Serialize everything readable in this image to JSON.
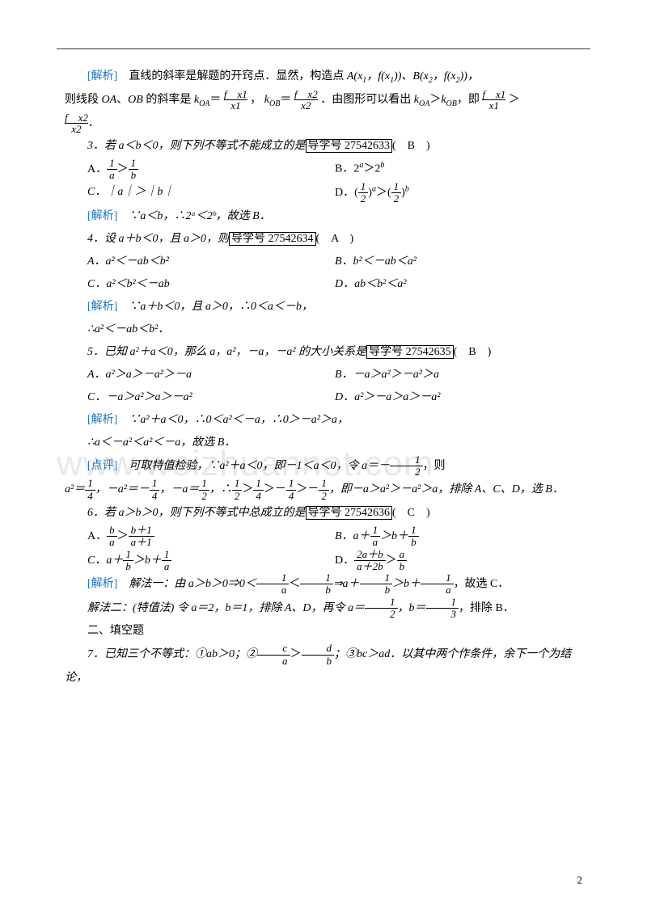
{
  "watermark": "www.weizhuannet.com",
  "page_number": "2",
  "analysis_label": "[解析]",
  "point_label": "[点评]",
  "guide_prefix": "导学号",
  "p1": {
    "text1": "　直线的斜率是解题的开窍点．显然，构造点 ",
    "pointA": "A",
    "coord1": "(x₁，f(x₁))、",
    "pointB": "B",
    "coord2": "(x₂，f(x₂))，"
  },
  "p2": {
    "t1": "则线段 ",
    "OA": "OA",
    "t2": "、",
    "OB": "OB",
    "t3": " 的斜率是 ",
    "k1": "k",
    "sub1": "OA",
    "eq": "＝",
    "t4": "，",
    "k2": "k",
    "sub2": "OB",
    "t5": "．由图形可以看出 ",
    "t6": "k",
    "t7": "＞",
    "t8": "k",
    "t9": "，即",
    "t10": "＞"
  },
  "p2b": "．",
  "q3": {
    "stem": "3．若 a＜b＜0，则下列不等式不能成立的是",
    "guide": "27542633",
    "answer": "(　B　)",
    "optA": "A．",
    "optB_l": "B．2",
    "optB_r": "＞2",
    "optC": "C．｜a｜＞｜b｜",
    "optD_l": "D．(",
    "optD_m": ")",
    "optD_r": "＞(",
    "optD_e": ")"
  },
  "a3": "　∵a＜b，∴2ᵃ＜2ᵇ，故选 B．",
  "q4": {
    "stem": "4．设 a＋b＜0，且 a＞0，则",
    "guide": "27542634",
    "answer": "(　A　)",
    "optA": "A．a²＜－ab＜b²",
    "optB": "B．b²＜－ab＜a²",
    "optC": "C．a²＜b²＜－ab",
    "optD": "D．ab＜b²＜a²"
  },
  "a4": {
    "l1": "　∵a＋b＜0，且 a＞0，∴0＜a＜－b，",
    "l2": "∴a²＜－ab＜b²．"
  },
  "q5": {
    "stem": "5．已知 a²＋a＜0，那么 a，a²，－a，－a² 的大小关系是",
    "guide": "27542635",
    "answer": "(　B　)",
    "optA": "A．a²＞a＞－a²＞－a",
    "optB": "B．－a＞a²＞－a²＞a",
    "optC": "C．－a＞a²＞a＞－a²",
    "optD": "D．a²＞－a＞a＞－a²"
  },
  "a5": {
    "l1": "　∵a²＋a＜0，∴0＜a²＜－a，∴0＞－a²＞a，",
    "l2": "∴a＜－a²＜a²＜－a，故选 B．"
  },
  "pt5": {
    "t1": "　可取特值检验，∵a²＋a＜0，即－1＜a＜0，令 a＝－",
    "t2": "，则"
  },
  "pt5b": {
    "t1": "a²＝",
    "t2": "，－a²＝－",
    "t3": "，－a＝",
    "t4": "，∴",
    "t5": "＞",
    "t6": "＞－",
    "t7": "＞－",
    "t8": "，即－a＞a²＞－a²＞a，排除 A、C、D，选 B．"
  },
  "q6": {
    "stem": "6．若 a＞b＞0，则下列不等式中总成立的是",
    "guide": "27542636",
    "answer": "(　C　)",
    "optA": "A．",
    "optB": "B．a＋",
    "optB2": "＞b＋",
    "optC": "C．a＋",
    "optC2": "＞b＋",
    "optD": "D．",
    "optD2": "＞"
  },
  "a6": {
    "l1": "　解法一：由 a＞b＞0⇒0＜",
    "l1b": "＜",
    "l1c": "⇒a＋",
    "l1d": "＞b＋",
    "l1e": "，故选 C．",
    "l2a": "解法二：(特值法) 令 a＝2，b＝1，排除 A、D，再令 a＝",
    "l2b": "，b＝",
    "l2c": "，排除 B．"
  },
  "sec2": "二、填空题",
  "q7": {
    "t1": "7．已知三个不等式：①ab＞0；②",
    "t2": "＞",
    "t3": "；③bc＞ad．以其中两个作条件，余下一个为结论，"
  },
  "fracs": {
    "one": "1",
    "two": "2",
    "four": "4",
    "a": "a",
    "b": "b",
    "c": "c",
    "d": "d",
    "fx1n": "f　x1",
    "x1d": "x1",
    "fx2n": "f　x2",
    "x2d": "x2",
    "bp1": "b＋1",
    "ap1": "a＋1",
    "tab": "2a＋b",
    "atb": "a＋2b",
    "one_three": "3"
  }
}
